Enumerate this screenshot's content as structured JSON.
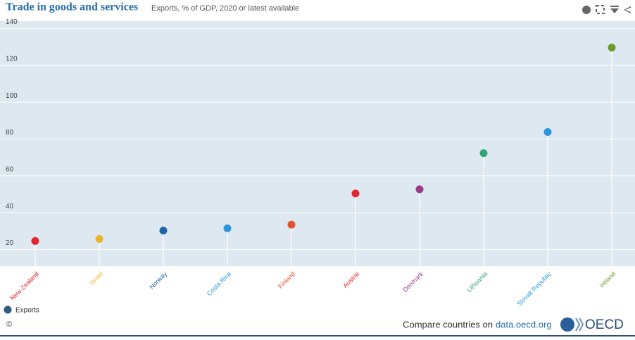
{
  "chart_data": {
    "type": "lollipop",
    "title": "Trade in goods and services",
    "subtitle": "Exports, % of GDP, 2020 or latest available",
    "categories": [
      "New Zealand",
      "Israel",
      "Norway",
      "Costa Rica",
      "Finland",
      "Austria",
      "Denmark",
      "Lithuania",
      "Slovak Republic",
      "Ireland"
    ],
    "series": [
      {
        "name": "Exports",
        "color": "#2f5a7e",
        "values": [
          24.6,
          25.7,
          30.3,
          31.5,
          33.5,
          50.4,
          52.7,
          72.3,
          83.8,
          129.6
        ],
        "point_colors": [
          "#e0262f",
          "#e8b52c",
          "#1f64a7",
          "#2d95d9",
          "#e0522a",
          "#e0262f",
          "#993c8a",
          "#33a374",
          "#2d95d9",
          "#6c9a2a"
        ]
      }
    ],
    "ylim": [
      11,
      144
    ],
    "yticks": [
      20,
      40,
      60,
      80,
      100,
      120,
      140
    ],
    "grid": true
  },
  "footer": {
    "copyright": "©",
    "text": "Compare countries on",
    "link": "data.oecd.org",
    "logo": "OECD"
  }
}
